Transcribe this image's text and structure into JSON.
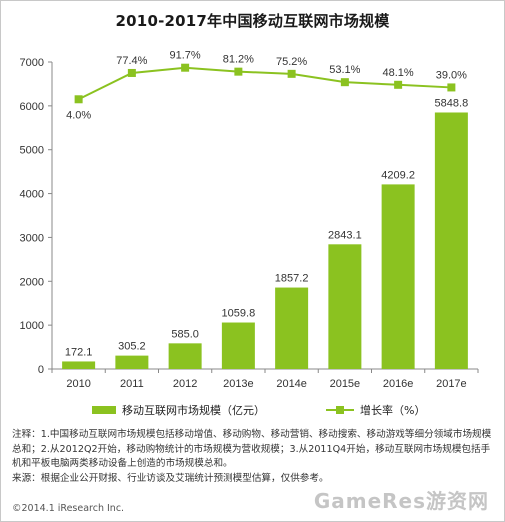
{
  "chart_data": {
    "type": "bar",
    "title": "2010-2017年中国移动互联网市场规模",
    "categories": [
      "2010",
      "2011",
      "2012",
      "2013e",
      "2014e",
      "2015e",
      "2016e",
      "2017e"
    ],
    "ylim": [
      0,
      7000
    ],
    "yticks": [
      0,
      1000,
      2000,
      3000,
      4000,
      5000,
      6000,
      7000
    ],
    "series": [
      {
        "name": "移动互联网市场规模（亿元）",
        "type": "bar",
        "values": [
          172.1,
          305.2,
          585.0,
          1059.8,
          1857.2,
          2843.1,
          4209.2,
          5848.8
        ],
        "labels": [
          "172.1",
          "305.2",
          "585.0",
          "1059.8",
          "1857.2",
          "2843.1",
          "4209.2",
          "5848.8"
        ]
      },
      {
        "name": "增长率（%）",
        "type": "line",
        "values": [
          4.0,
          77.4,
          91.7,
          81.2,
          75.2,
          53.1,
          48.1,
          39.0
        ],
        "labels": [
          "4.0%",
          "77.4%",
          "91.7%",
          "81.2%",
          "75.2%",
          "53.1%",
          "48.1%",
          "39.0%"
        ],
        "line_y_left_axis_values": [
          6150,
          6750,
          6870,
          6780,
          6730,
          6540,
          6480,
          6420
        ]
      }
    ],
    "grid": false,
    "legend_position": "bottom",
    "colors": {
      "bar": "#8bc220",
      "line": "#8bc220",
      "axis": "#888888"
    }
  },
  "notes": {
    "line1": "注释：1.中国移动互联网市场规模包括移动增值、移动购物、移动营销、移动搜索、移动游戏等细分领域市场规模总和；2.从2012Q2开始，移动购物统计的市场规模为营收规模；3.从2011Q4开始，移动互联网市场规模包括手机和平板电脑两类移动设备上创造的市场规模总和。",
    "line2": "来源：根据企业公开财报、行业访谈及艾瑞统计预测模型估算，仅供参考。"
  },
  "copyright": "©2014.1 iResearch Inc.",
  "watermark": "GameRes游资网"
}
